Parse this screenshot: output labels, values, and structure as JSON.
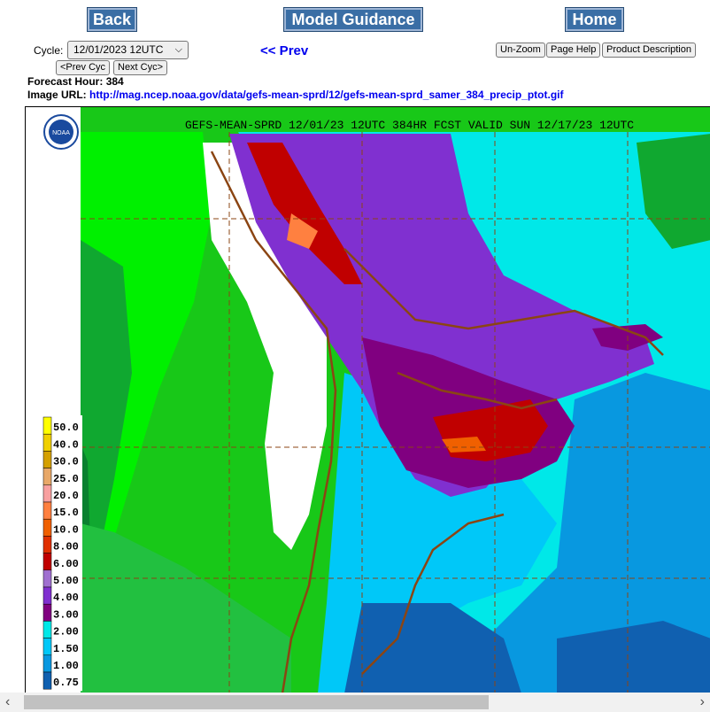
{
  "nav": {
    "back": "Back",
    "guidance": "Model Guidance",
    "home": "Home"
  },
  "cycle": {
    "label": "Cycle:",
    "value": "12/01/2023 12UTC",
    "prev_cyc": "<Prev Cyc",
    "next_cyc": "Next Cyc>"
  },
  "prev_link": "<< Prev",
  "tools": {
    "unzoom": "Un-Zoom",
    "help": "Page Help",
    "desc": "Product Description"
  },
  "forecast": {
    "label": "Forecast Hour:",
    "value": "384"
  },
  "image_url": {
    "label": "Image URL:",
    "value": "http://mag.ncep.noaa.gov/data/gefs-mean-sprd/12/gefs-mean-sprd_samer_384_precip_ptot.gif"
  },
  "map": {
    "title": "GEFS-MEAN-SPRD 12/01/23 12UTC 384HR FCST VALID SUN 12/17/23 12UTC",
    "logo_text": "NOAA",
    "legend": [
      "50.0",
      "40.0",
      "30.0",
      "25.0",
      "20.0",
      "15.0",
      "10.0",
      "8.00",
      "6.00",
      "5.00",
      "4.00",
      "3.00",
      "2.00",
      "1.50",
      "1.00",
      "0.75"
    ],
    "legend_colors": [
      "#ffff00",
      "#f0d000",
      "#d4a000",
      "#e8a868",
      "#f8a0a0",
      "#ff8040",
      "#f06000",
      "#e03000",
      "#c00000",
      "#a070d0",
      "#8030d0",
      "#800080",
      "#00e8e8",
      "#00c8f8",
      "#0898e0",
      "#1060b0"
    ]
  },
  "scrollbar": {
    "left": "‹",
    "right": "›"
  }
}
